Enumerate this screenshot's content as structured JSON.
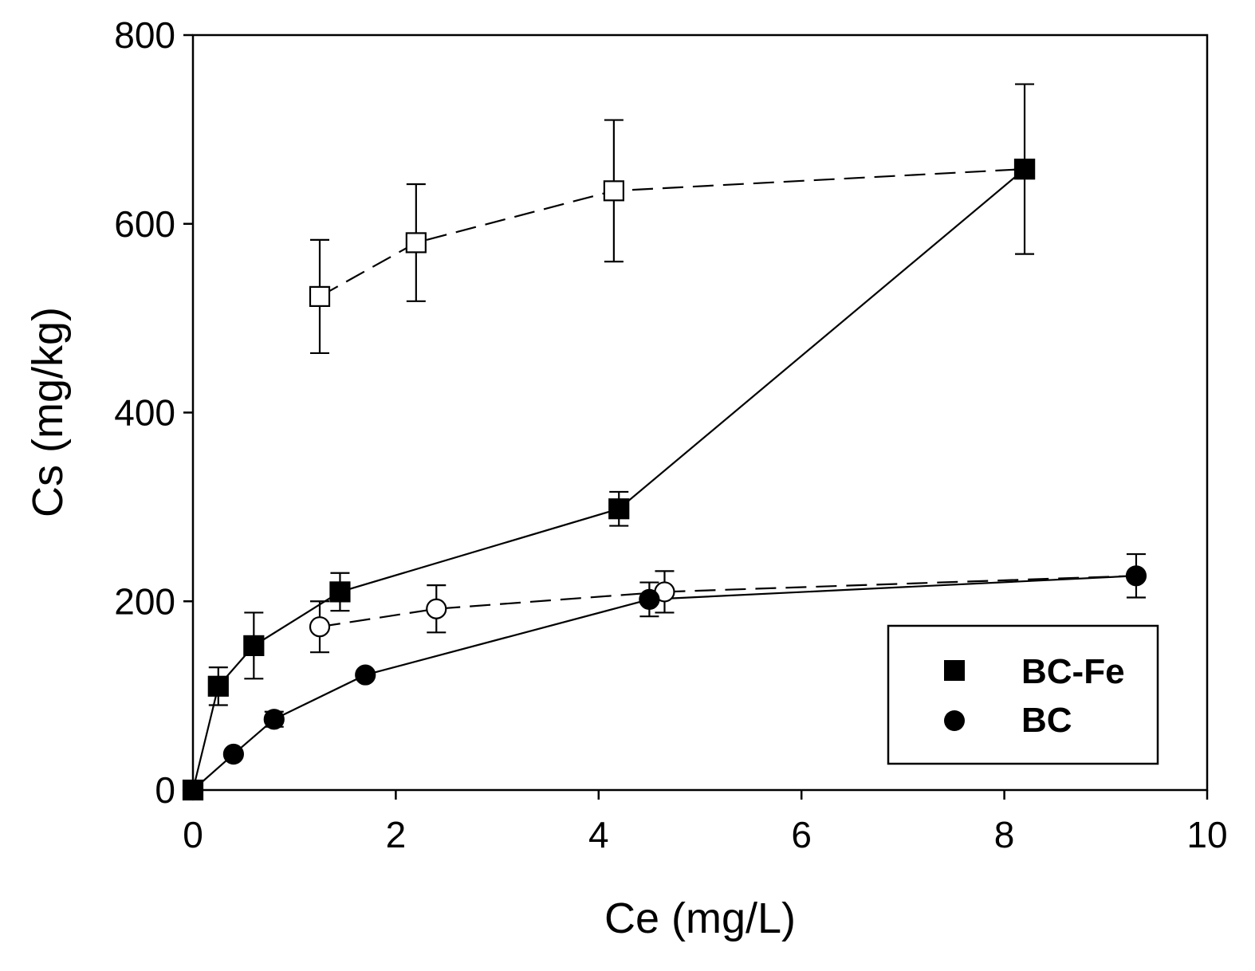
{
  "chart_data": {
    "type": "scatter",
    "title": "",
    "xlabel": "Ce (mg/L)",
    "ylabel": "Cs (mg/kg)",
    "xlim": [
      0,
      10
    ],
    "ylim": [
      0,
      800
    ],
    "grid": false,
    "xticks": [
      0,
      2,
      4,
      6,
      8,
      10
    ],
    "yticks": [
      0,
      200,
      400,
      600,
      800
    ],
    "xtick_labels": [
      "0",
      "2",
      "4",
      "6",
      "8",
      "10"
    ],
    "ytick_labels": [
      "0",
      "200",
      "400",
      "600",
      "800"
    ],
    "legend": {
      "placement": "bottom-right",
      "entries": [
        {
          "label": "BC-Fe",
          "marker": "square"
        },
        {
          "label": "BC",
          "marker": "circle"
        }
      ]
    },
    "series": [
      {
        "name": "BC-Fe (open, dashed)",
        "marker": "square",
        "filled": false,
        "line": "dashed",
        "in_legend": false,
        "x": [
          1.25,
          2.2,
          4.15,
          8.2
        ],
        "y": [
          523,
          580,
          635,
          658
        ],
        "err": [
          60,
          62,
          75,
          0
        ]
      },
      {
        "name": "BC-Fe",
        "marker": "square",
        "filled": true,
        "line": "solid",
        "in_legend": true,
        "x": [
          0,
          0.25,
          0.6,
          1.45,
          4.2,
          8.2
        ],
        "y": [
          0,
          110,
          153,
          210,
          298,
          658
        ],
        "err": [
          0,
          20,
          35,
          20,
          18,
          90
        ]
      },
      {
        "name": "BC (open, dashed)",
        "marker": "circle",
        "filled": false,
        "line": "dashed",
        "in_legend": false,
        "x": [
          1.25,
          2.4,
          4.65
        ],
        "y": [
          173,
          192,
          210
        ],
        "err": [
          27,
          25,
          22
        ]
      },
      {
        "name": "BC",
        "marker": "circle",
        "filled": true,
        "line": "solid",
        "in_legend": true,
        "x": [
          0,
          0.4,
          0.8,
          1.7,
          4.5,
          9.3
        ],
        "y": [
          0,
          38,
          75,
          122,
          202,
          227
        ],
        "err": [
          0,
          0,
          8,
          0,
          18,
          23
        ]
      }
    ],
    "extra_dashed_segment": {
      "x": [
        4.65,
        9.3
      ],
      "y": [
        210,
        227
      ]
    }
  }
}
